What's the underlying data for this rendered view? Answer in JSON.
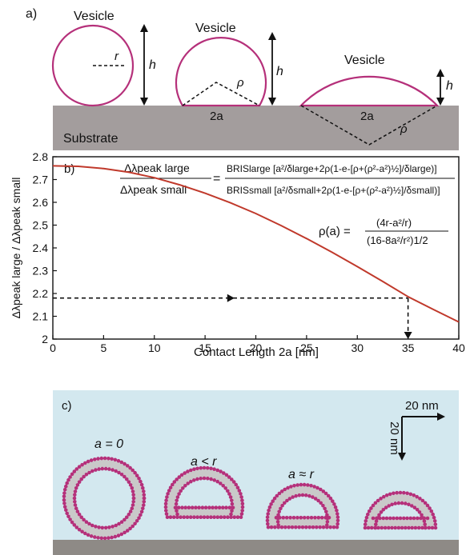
{
  "panel_a": {
    "label": "a)",
    "vesicle_label": "Vesicle",
    "r_label": "r",
    "h_label": "h",
    "rho_label": "ρ",
    "twoa_label": "2a",
    "substrate_label": "Substrate"
  },
  "panel_b": {
    "label": "b)",
    "formula_lhs_num": "Δλpeak large",
    "formula_lhs_den": "Δλpeak small",
    "formula_rhs_num": "BRISlarge [a²/δlarge+2ρ(1-e-[ρ+(ρ²-a²)½]/δlarge)]",
    "formula_rhs_den": "BRISsmall [a²/δsmall+2ρ(1-e-[ρ+(ρ²-a²)½]/δsmall)]",
    "rho_lhs": "ρ(a) =",
    "rho_num": "(4r-a²/r)",
    "rho_den": "(16-8a²/r²)1/2"
  },
  "chart_data": {
    "type": "line",
    "xlabel": "Contact Length 2a [nm]",
    "ylabel": "Δλpeak large / Δλpeak small",
    "xlim": [
      0,
      40
    ],
    "ylim": [
      2,
      2.8
    ],
    "xticks": [
      "0",
      "5",
      "10",
      "15",
      "20",
      "25",
      "30",
      "35",
      "40"
    ],
    "yticks": [
      "2",
      "2.1",
      "2.2",
      "2.3",
      "2.4",
      "2.5",
      "2.6",
      "2.7",
      "2.8"
    ],
    "series": [
      {
        "color": "#c0392b",
        "x": [
          0,
          2.5,
          5,
          7.5,
          10,
          12.5,
          15,
          17.5,
          20,
          22.5,
          25,
          27.5,
          30,
          32.5,
          35,
          37.5,
          40
        ],
        "y": [
          2.76,
          2.758,
          2.748,
          2.732,
          2.708,
          2.677,
          2.64,
          2.598,
          2.551,
          2.498,
          2.441,
          2.381,
          2.318,
          2.253,
          2.186,
          2.13,
          2.075
        ]
      }
    ],
    "annotation": {
      "y_read": 2.18,
      "x_read": 35
    }
  },
  "panel_c": {
    "label": "c)",
    "scale_x": "20 nm",
    "scale_y": "20 nm",
    "state_1": "a = 0",
    "state_2": "a < r",
    "state_3": "a ≈ r"
  },
  "colors": {
    "vesicle": "#b5307a",
    "substrate": "#a39d9d",
    "curve": "#c0392b",
    "panel_c_bg": "#d3e8ef"
  }
}
